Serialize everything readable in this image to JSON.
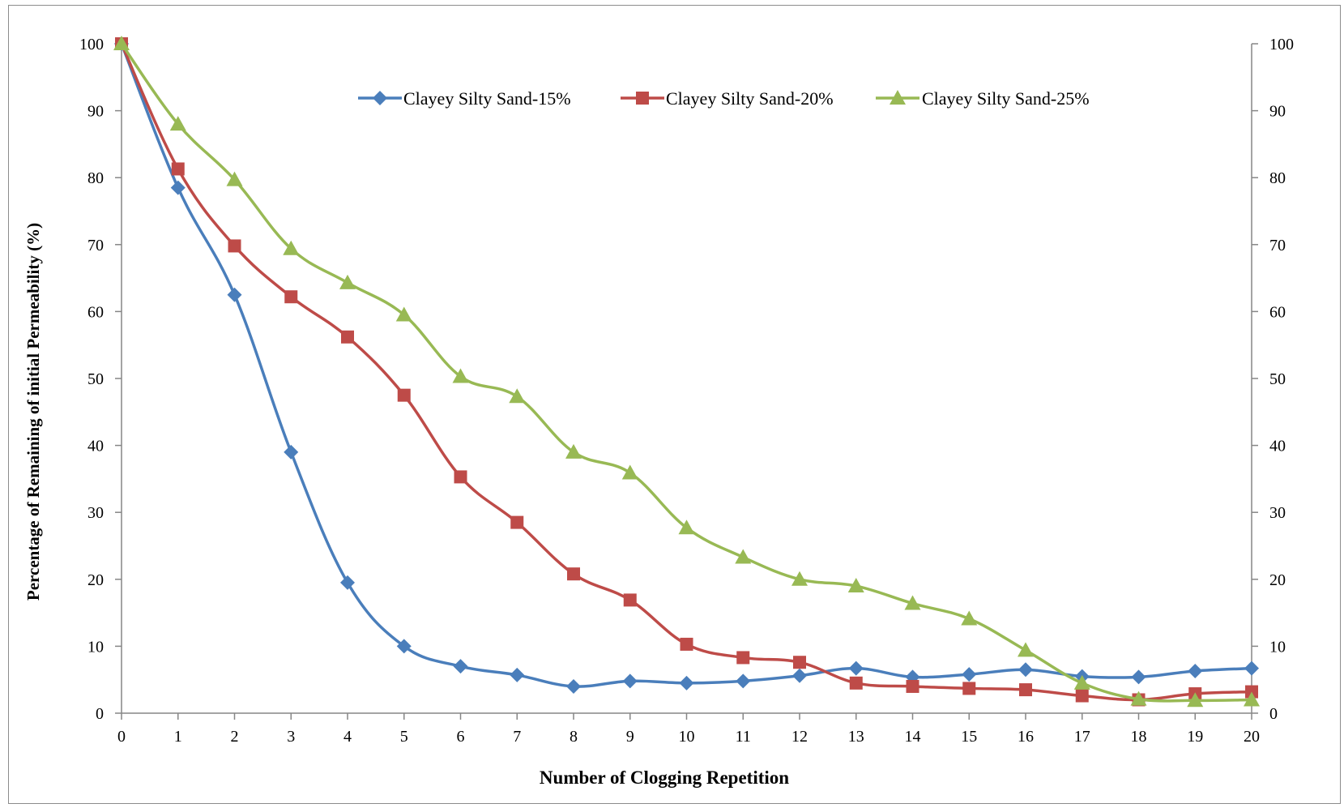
{
  "chart_data": {
    "type": "line",
    "title": "",
    "xlabel": "Number of Clogging Repetition",
    "ylabel": "Percentage of Remaining of initial Permeability  (%)",
    "x": [
      0,
      1,
      2,
      3,
      4,
      5,
      6,
      7,
      8,
      9,
      10,
      11,
      12,
      13,
      14,
      15,
      16,
      17,
      18,
      19,
      20
    ],
    "xlim": [
      0,
      20
    ],
    "ylim": [
      0,
      100
    ],
    "yticks": [
      0,
      10,
      20,
      30,
      40,
      50,
      60,
      70,
      80,
      90,
      100
    ],
    "secondary_y_axis": true,
    "grid": false,
    "legend_position": "top-center",
    "series": [
      {
        "name": "Clayey Silty Sand-15%",
        "color": "#4a7ebb",
        "marker": "diamond",
        "values": [
          100,
          78.5,
          62.5,
          39,
          19.5,
          10,
          7,
          5.7,
          4,
          4.8,
          4.5,
          4.8,
          5.6,
          6.7,
          5.4,
          5.8,
          6.5,
          5.5,
          5.4,
          6.3,
          6.7
        ]
      },
      {
        "name": "Clayey Silty Sand-20%",
        "color": "#be4b48",
        "marker": "square",
        "values": [
          100,
          81.3,
          69.8,
          62.2,
          56.2,
          47.5,
          35.3,
          28.5,
          20.8,
          16.9,
          10.3,
          8.3,
          7.6,
          4.5,
          4,
          3.7,
          3.5,
          2.6,
          2,
          2.9,
          3.2
        ]
      },
      {
        "name": "Clayey Silty Sand-25%",
        "color": "#98b954",
        "marker": "triangle",
        "values": [
          100,
          88,
          79.7,
          69.4,
          64.3,
          59.5,
          50.3,
          47.3,
          39,
          35.9,
          27.7,
          23.3,
          20,
          19,
          16.4,
          14.1,
          9.4,
          4.5,
          2.1,
          1.9,
          2
        ]
      }
    ]
  }
}
